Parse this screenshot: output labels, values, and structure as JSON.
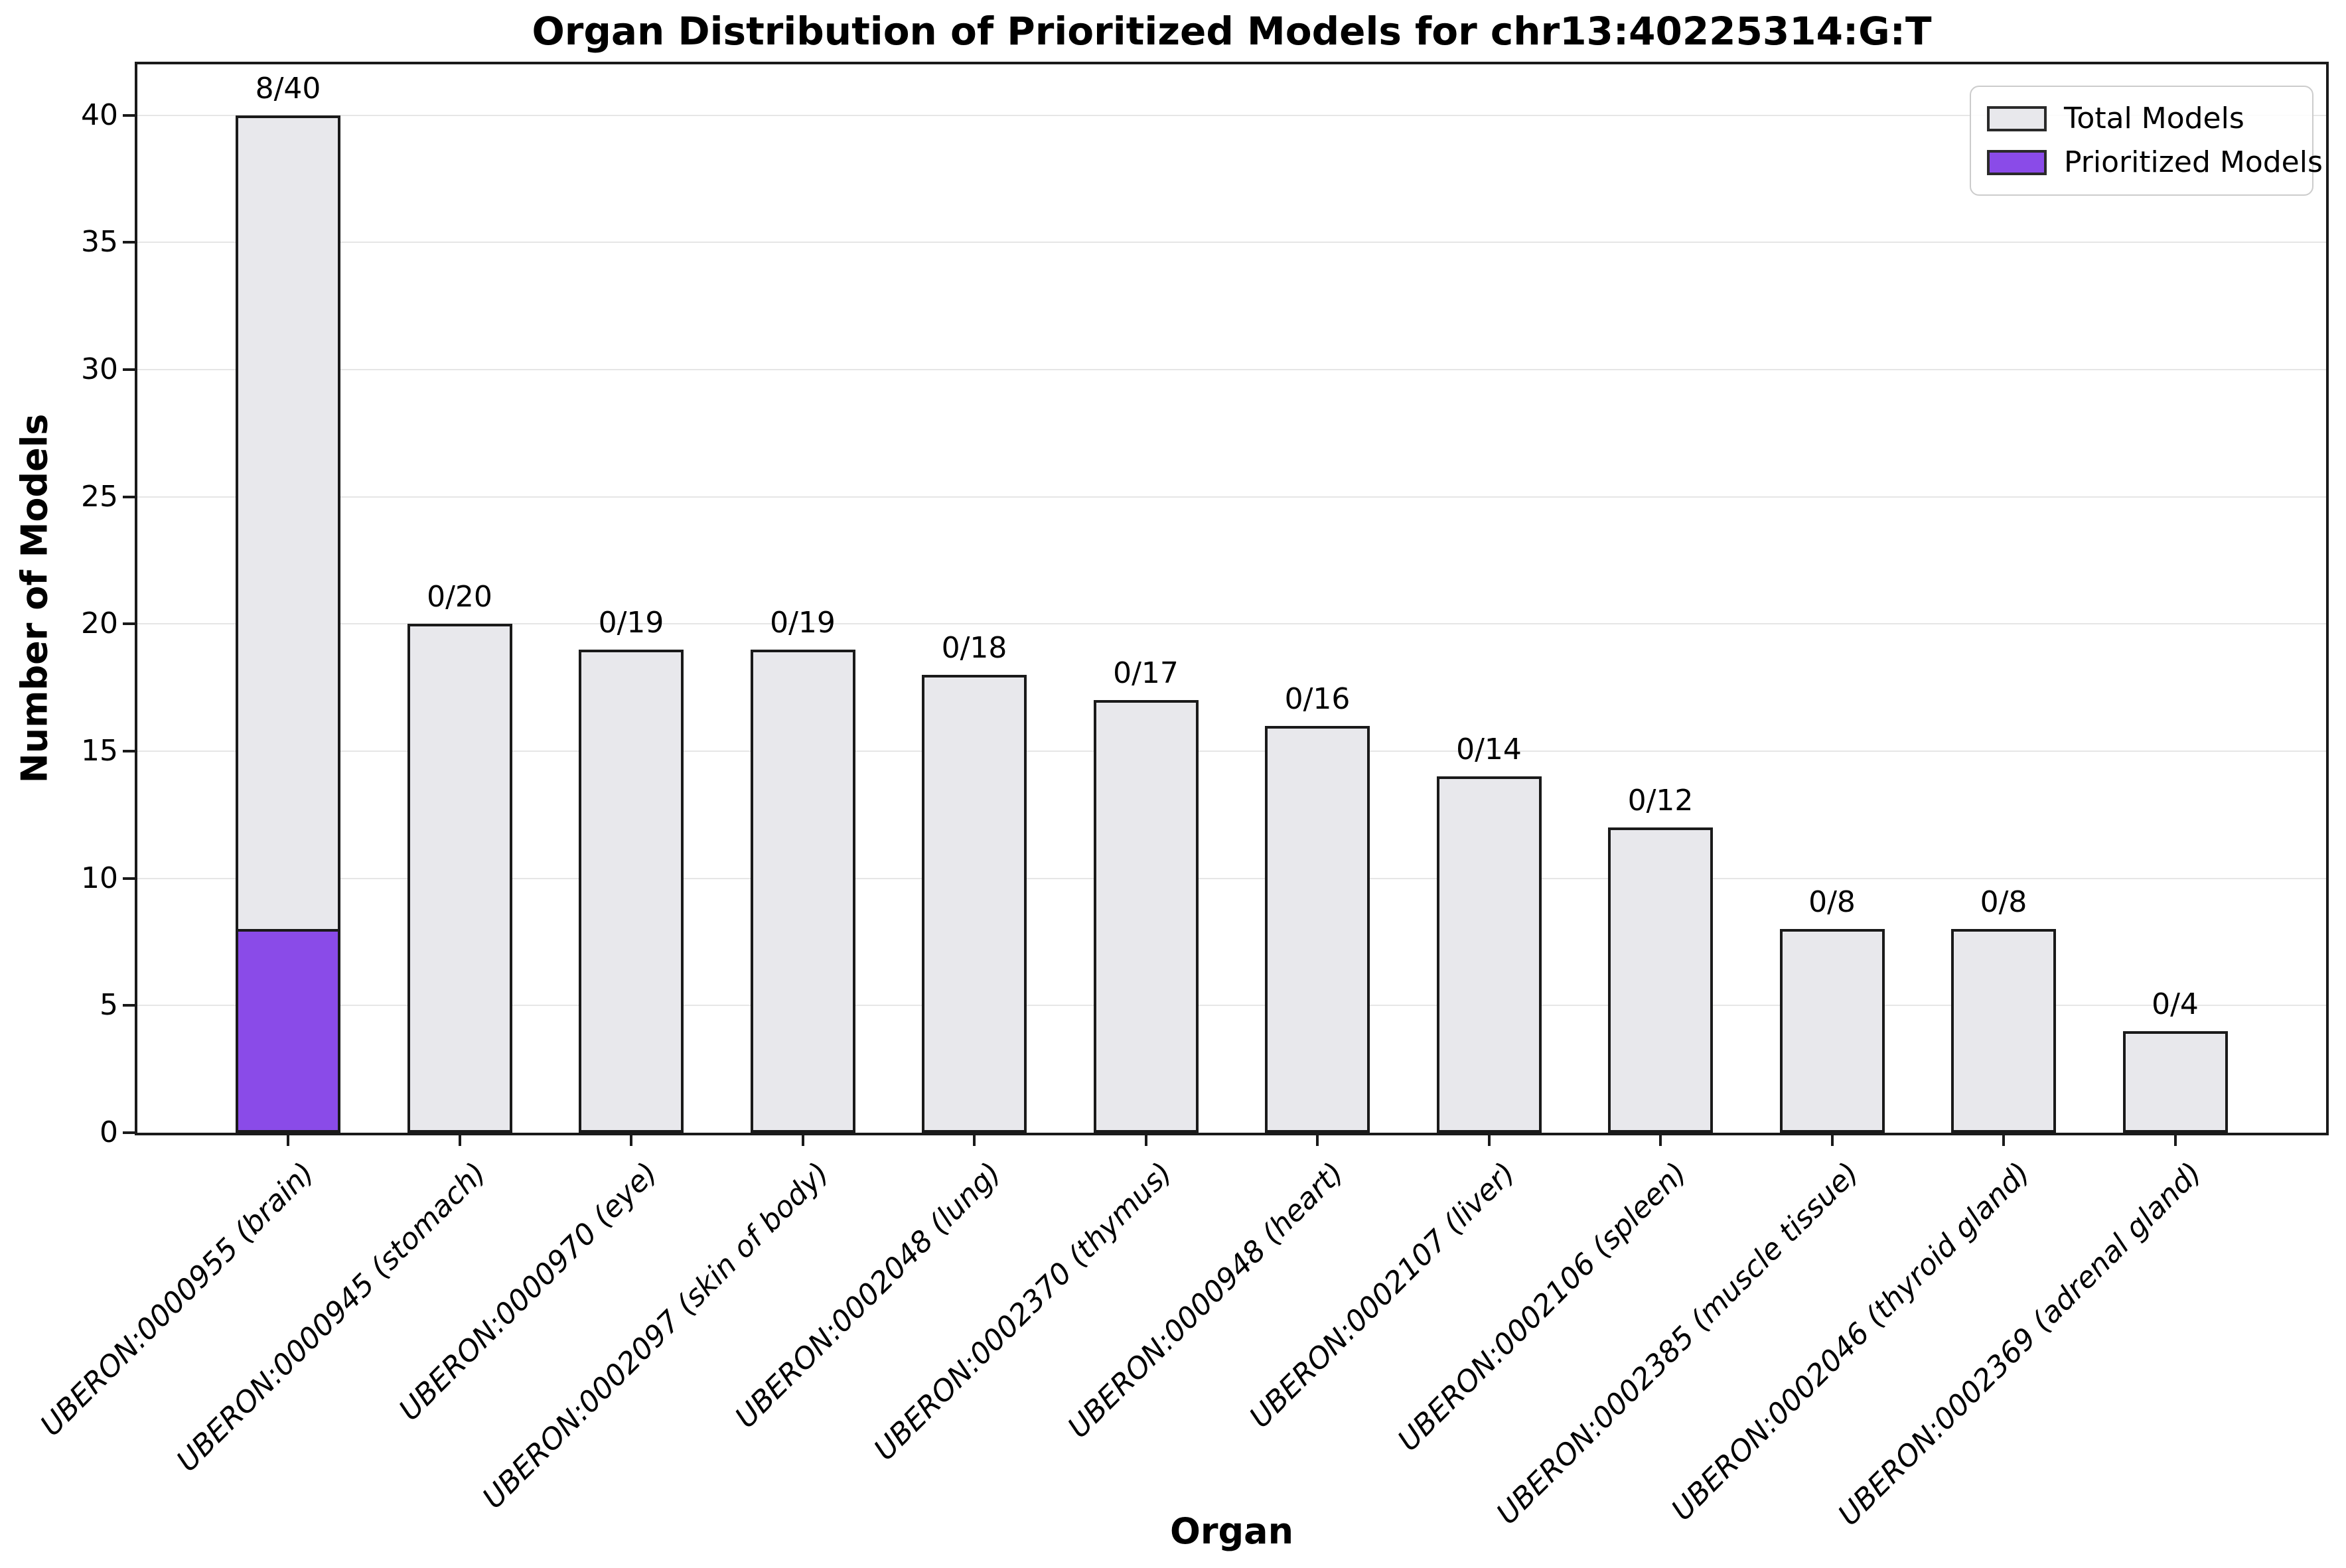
{
  "title": "Organ Distribution of Prioritized Models for chr13:40225314:G:T",
  "legend": {
    "total_label": "Total Models",
    "prioritized_label": "Prioritized Models"
  },
  "chart_data": {
    "type": "bar",
    "title": "Organ Distribution of Prioritized Models for chr13:40225314:G:T",
    "xlabel": "Organ",
    "ylabel": "Number of Models",
    "ylim": [
      0,
      42
    ],
    "yticks": [
      0,
      5,
      10,
      15,
      20,
      25,
      30,
      35,
      40
    ],
    "grid": "horizontal-only",
    "legend_position": "upper right",
    "categories": [
      "UBERON:0000955 (brain)",
      "UBERON:0000945 (stomach)",
      "UBERON:0000970 (eye)",
      "UBERON:0002097 (skin of body)",
      "UBERON:0002048 (lung)",
      "UBERON:0002370 (thymus)",
      "UBERON:0000948 (heart)",
      "UBERON:0002107 (liver)",
      "UBERON:0002106 (spleen)",
      "UBERON:0002385 (muscle tissue)",
      "UBERON:0002046 (thyroid gland)",
      "UBERON:0002369 (adrenal gland)"
    ],
    "series": [
      {
        "name": "Total Models",
        "color": "#e8e8ec",
        "values": [
          40,
          20,
          19,
          19,
          18,
          17,
          16,
          14,
          12,
          8,
          8,
          4
        ]
      },
      {
        "name": "Prioritized Models",
        "color": "#8a4be8",
        "values": [
          8,
          0,
          0,
          0,
          0,
          0,
          0,
          0,
          0,
          0,
          0,
          0
        ]
      }
    ],
    "bar_labels": [
      "8/40",
      "0/20",
      "0/19",
      "0/19",
      "0/18",
      "0/17",
      "0/16",
      "0/14",
      "0/12",
      "0/8",
      "0/8",
      "0/4"
    ],
    "colors": {
      "total_fill": "#e8e8ec",
      "prioritized_fill": "#8a4be8",
      "bar_edge": "#1a1a1a",
      "grid": "#e6e6e6",
      "legend_border": "#cccccc"
    }
  }
}
